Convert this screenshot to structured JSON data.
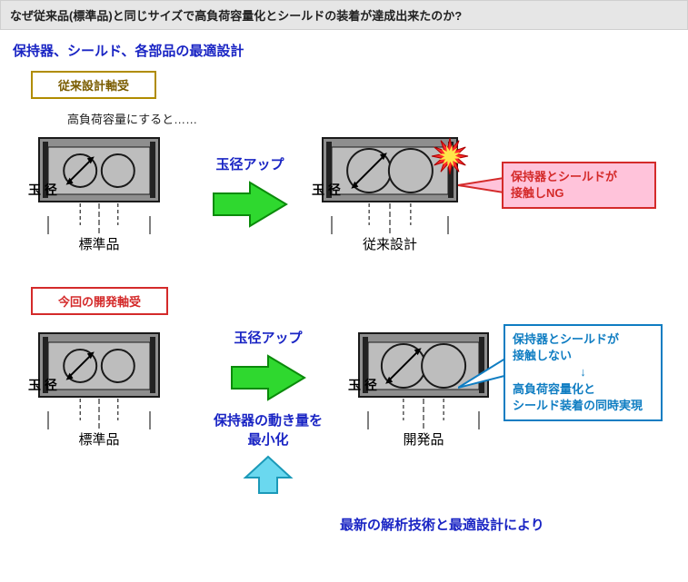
{
  "header": {
    "question": "なぜ従来品(標準品)と同じサイズで高負荷容量化とシールドの装着が達成出来たのか?"
  },
  "section_title": "保持器、シールド、各部品の最適設計",
  "conventional": {
    "box_label": "従来設計軸受",
    "box_border": "#b08c00",
    "box_text_color": "#7a5c00",
    "caption": "高負荷容量にすると……",
    "arrow_label": "玉径アップ",
    "left_label": "標準品",
    "right_label": "従来設計",
    "ball_label": "玉 径",
    "callout": {
      "text1": "保持器とシールドが",
      "text2": "接触しNG",
      "bg": "#ffc3da",
      "border": "#d42a2a",
      "text_color": "#d42a2a"
    }
  },
  "developed": {
    "box_label": "今回の開発軸受",
    "box_border": "#d42a2a",
    "box_text_color": "#d42a2a",
    "arrow_label": "玉径アップ",
    "arrow_sub1": "保持器の動き量を",
    "arrow_sub2": "最小化",
    "left_label": "標準品",
    "right_label": "開発品",
    "ball_label": "玉 径",
    "callout": {
      "text1": "保持器とシールドが",
      "text2": "接触しない",
      "text3": "↓",
      "text4": "高負荷容量化と",
      "text5": "シールド装着の同時実現",
      "bg": "#ffffff",
      "border": "#0f7dc2",
      "text_color": "#0f7dc2"
    },
    "footer": "最新の解析技術と最適設計により"
  },
  "colors": {
    "arrow_green_fill": "#2fd82f",
    "arrow_green_stroke": "#0a8a0a",
    "arrow_cyan_fill": "#6ad8ef",
    "arrow_cyan_stroke": "#1b99b8",
    "bearing_gray": "#8e8e8e",
    "bearing_light": "#bdbdbd",
    "bearing_stroke": "#1a1a1a"
  }
}
